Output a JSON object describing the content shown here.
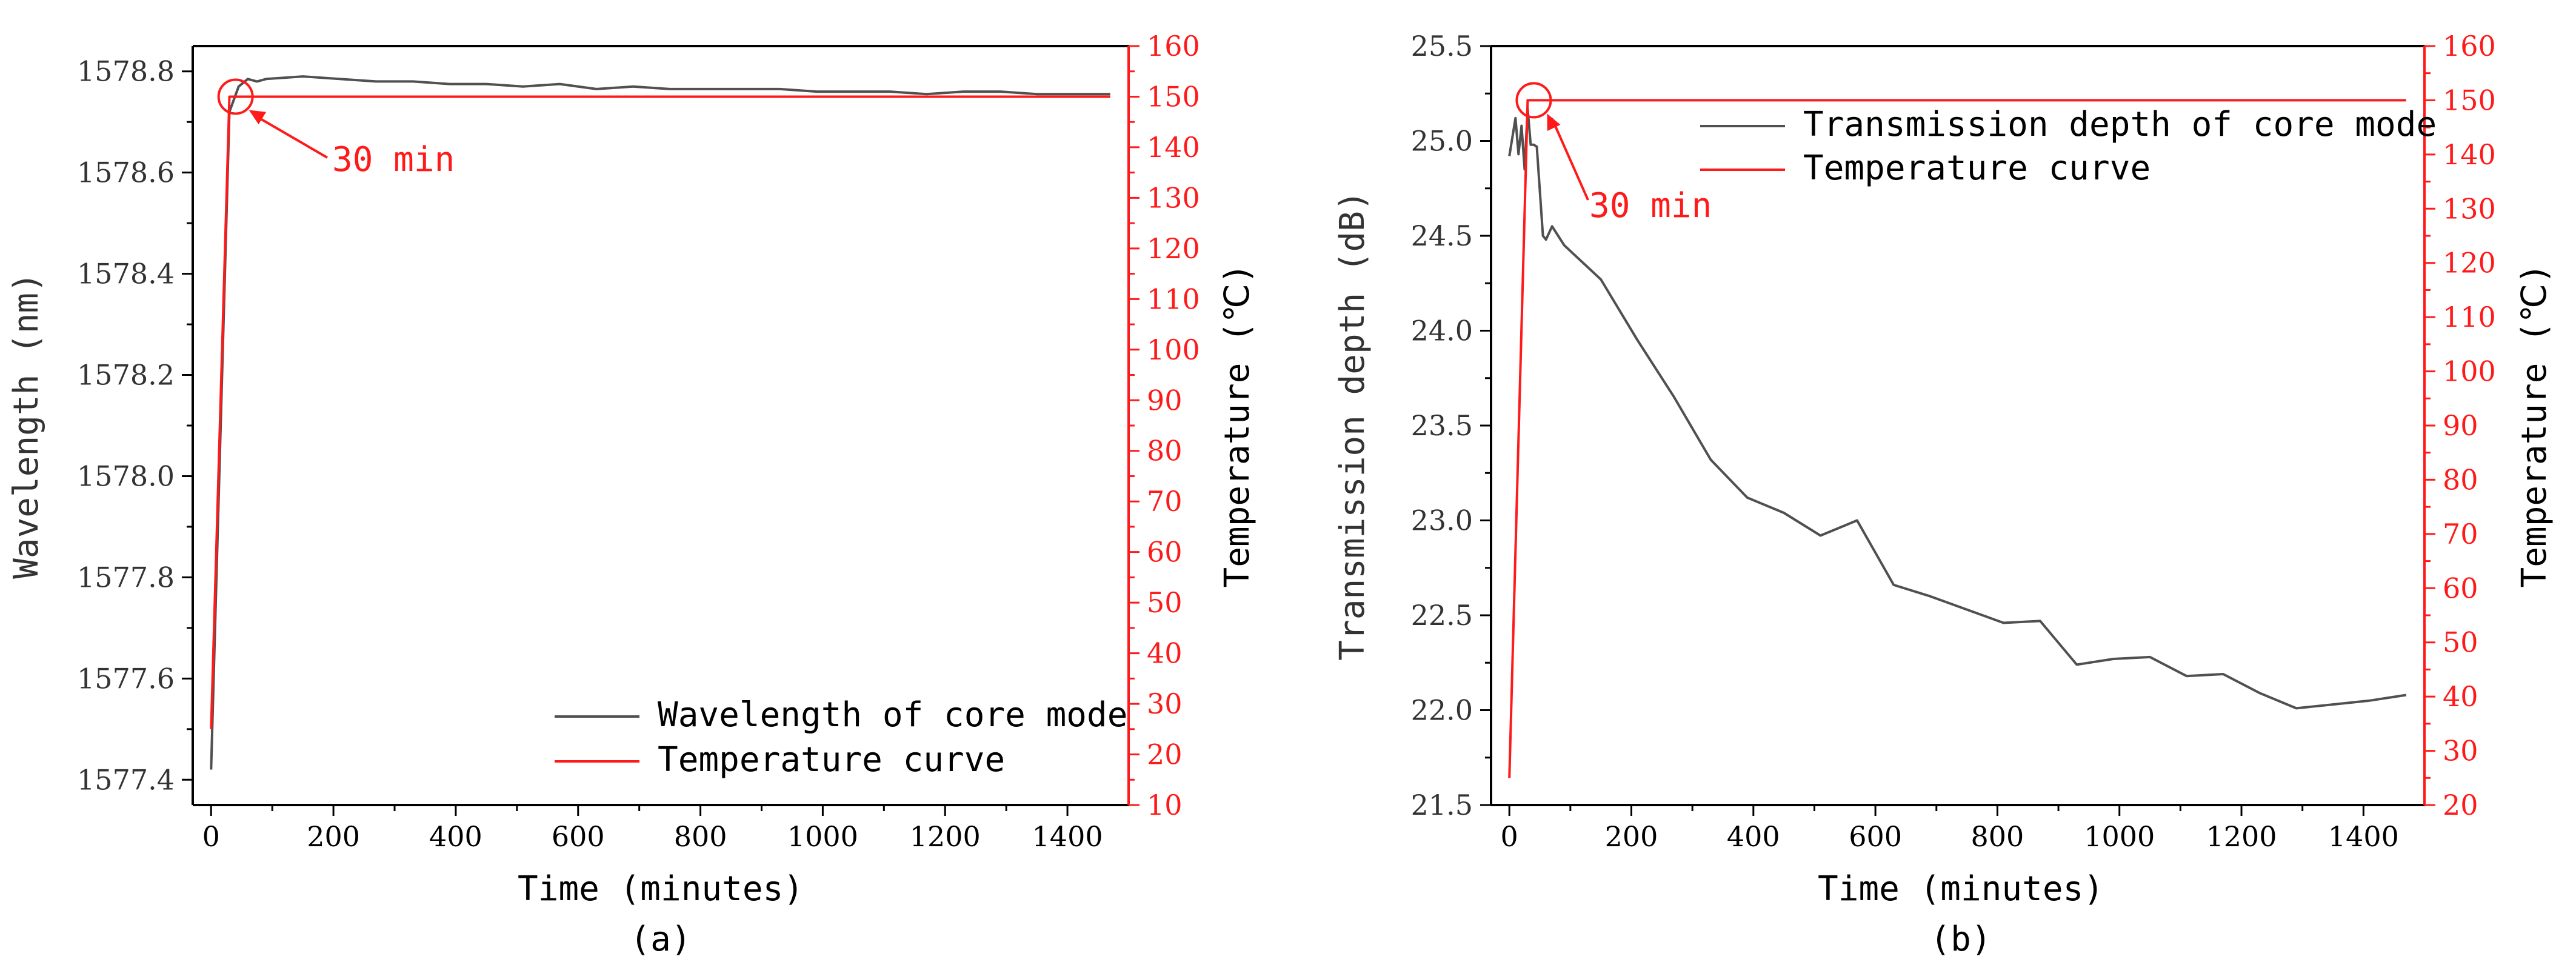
{
  "figures": [
    {
      "caption": "(a)",
      "annotation": "30 min",
      "legend": [
        "Wavelength of core mode",
        "Temperature curve"
      ]
    },
    {
      "caption": "(b)",
      "annotation": "30 min",
      "legend": [
        "Transmission depth of core mode",
        "Temperature curve"
      ]
    }
  ],
  "colors": {
    "series": "#505050",
    "temperature": "#ff1a1a",
    "axis": "#000000",
    "left_text": "#333333"
  },
  "chart_data": [
    {
      "type": "line",
      "title": "",
      "xlabel": "Time (minutes)",
      "ylabel": "Wavelength (nm)",
      "y2label": "Temperature (℃)",
      "xlim": [
        -30,
        1500
      ],
      "ylim": [
        1577.35,
        1578.85
      ],
      "y2lim": [
        10,
        160
      ],
      "xticks": [
        0,
        200,
        400,
        600,
        800,
        1000,
        1200,
        1400
      ],
      "xtick_labels": [
        "0",
        "200",
        "400",
        "600",
        "800",
        "1000",
        "1200",
        "1400"
      ],
      "yticks": [
        1577.4,
        1577.6,
        1577.8,
        1578.0,
        1578.2,
        1578.4,
        1578.6,
        1578.8
      ],
      "ytick_labels": [
        "1577.4",
        "1577.6",
        "1577.8",
        "1578.0",
        "1578.2",
        "1578.4",
        "1578.6",
        "1578.8"
      ],
      "y2ticks": [
        10,
        20,
        30,
        40,
        50,
        60,
        70,
        80,
        90,
        100,
        110,
        120,
        130,
        140,
        150,
        160
      ],
      "y2tick_labels": [
        "10",
        "20",
        "30",
        "40",
        "50",
        "60",
        "70",
        "80",
        "90",
        "100",
        "110",
        "120",
        "130",
        "140",
        "150",
        "160"
      ],
      "legend_position": "bottom-right",
      "annotation": {
        "text": "30 min",
        "x": 40,
        "y2": 150
      },
      "series": [
        {
          "name": "Wavelength of core mode",
          "axis": "left",
          "x": [
            0,
            30,
            45,
            60,
            75,
            90,
            150,
            210,
            270,
            330,
            390,
            450,
            510,
            570,
            630,
            690,
            750,
            810,
            870,
            930,
            990,
            1050,
            1110,
            1170,
            1230,
            1290,
            1350,
            1410,
            1470
          ],
          "y": [
            1577.42,
            1578.72,
            1578.77,
            1578.785,
            1578.78,
            1578.785,
            1578.79,
            1578.785,
            1578.78,
            1578.78,
            1578.775,
            1578.775,
            1578.77,
            1578.775,
            1578.765,
            1578.77,
            1578.765,
            1578.765,
            1578.765,
            1578.765,
            1578.76,
            1578.76,
            1578.76,
            1578.755,
            1578.76,
            1578.76,
            1578.755,
            1578.755,
            1578.755
          ]
        },
        {
          "name": "Temperature curve",
          "axis": "right",
          "x": [
            0,
            30,
            1470
          ],
          "y": [
            25,
            150,
            150
          ]
        }
      ]
    },
    {
      "type": "line",
      "title": "",
      "xlabel": "Time (minutes)",
      "ylabel": "Transmission depth (dB)",
      "y2label": "Temperature (℃)",
      "xlim": [
        -30,
        1500
      ],
      "ylim": [
        21.5,
        25.5
      ],
      "y2lim": [
        20,
        160
      ],
      "xticks": [
        0,
        200,
        400,
        600,
        800,
        1000,
        1200,
        1400
      ],
      "xtick_labels": [
        "0",
        "200",
        "400",
        "600",
        "800",
        "1000",
        "1200",
        "1400"
      ],
      "yticks": [
        21.5,
        22.0,
        22.5,
        23.0,
        23.5,
        24.0,
        24.5,
        25.0,
        25.5
      ],
      "ytick_labels": [
        "21.5",
        "22.0",
        "22.5",
        "23.0",
        "23.5",
        "24.0",
        "24.5",
        "25.0",
        "25.5"
      ],
      "y2ticks": [
        20,
        30,
        40,
        50,
        60,
        70,
        80,
        90,
        100,
        110,
        120,
        130,
        140,
        150,
        160
      ],
      "y2tick_labels": [
        "20",
        "30",
        "40",
        "50",
        "60",
        "70",
        "80",
        "90",
        "100",
        "110",
        "120",
        "130",
        "140",
        "150",
        "160"
      ],
      "legend_position": "top-right",
      "annotation": {
        "text": "30 min",
        "x": 40,
        "y2": 150
      },
      "series": [
        {
          "name": "Transmission depth of core mode",
          "axis": "left",
          "x": [
            0,
            10,
            15,
            20,
            25,
            30,
            35,
            40,
            45,
            55,
            60,
            70,
            80,
            90,
            150,
            210,
            270,
            330,
            390,
            450,
            510,
            570,
            630,
            690,
            750,
            810,
            870,
            930,
            990,
            1050,
            1110,
            1170,
            1230,
            1290,
            1350,
            1410,
            1470
          ],
          "y": [
            24.92,
            25.12,
            24.93,
            25.08,
            24.85,
            25.17,
            24.98,
            24.98,
            24.97,
            24.5,
            24.48,
            24.55,
            24.5,
            24.45,
            24.27,
            23.95,
            23.65,
            23.32,
            23.12,
            23.04,
            22.92,
            23.0,
            22.66,
            22.6,
            22.53,
            22.46,
            22.47,
            22.24,
            22.27,
            22.28,
            22.18,
            22.19,
            22.09,
            22.01,
            22.03,
            22.05,
            22.08
          ]
        },
        {
          "name": "Temperature curve",
          "axis": "right",
          "x": [
            0,
            30,
            1470
          ],
          "y": [
            25,
            150,
            150
          ]
        }
      ]
    }
  ]
}
